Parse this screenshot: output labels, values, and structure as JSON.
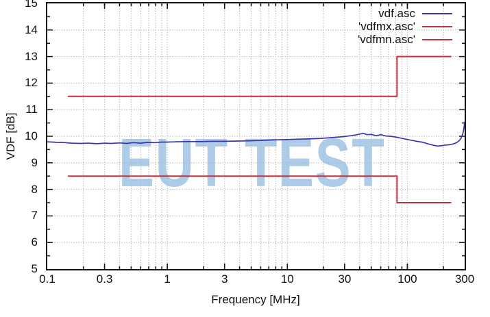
{
  "watermark": {
    "text": "EUT TEST",
    "color": "rgba(150,190,226,0.78)"
  },
  "colors": {
    "blue_series": "#3a35a8",
    "red_series": "#c4303c",
    "grid": "#c5c5c5",
    "axis": "#141414",
    "text": "#111111"
  },
  "chart_data": {
    "type": "line",
    "title": "",
    "xlabel": "Frequency [MHz]",
    "ylabel": "VDF [dB]",
    "x_scale": "log",
    "xlim": [
      0.1,
      300
    ],
    "ylim": [
      5,
      15
    ],
    "x_ticks": [
      0.1,
      0.3,
      1,
      3,
      10,
      30,
      100,
      300
    ],
    "x_tick_labels": [
      "0.1",
      "0.3",
      "1",
      "3",
      "10",
      "30",
      "100",
      "300"
    ],
    "y_ticks": [
      5,
      6,
      7,
      8,
      9,
      10,
      11,
      12,
      13,
      14,
      15
    ],
    "y_minor_step": 0.5,
    "grid": true,
    "legend_position": "top-right-inside",
    "series": [
      {
        "name": "vdf.asc",
        "color": "#3a35a8",
        "width": 1.7,
        "points": [
          [
            0.1,
            9.79
          ],
          [
            0.12,
            9.77
          ],
          [
            0.14,
            9.76
          ],
          [
            0.16,
            9.74
          ],
          [
            0.19,
            9.73
          ],
          [
            0.22,
            9.74
          ],
          [
            0.26,
            9.72
          ],
          [
            0.3,
            9.74
          ],
          [
            0.34,
            9.73
          ],
          [
            0.4,
            9.75
          ],
          [
            0.46,
            9.73
          ],
          [
            0.52,
            9.76
          ],
          [
            0.6,
            9.74
          ],
          [
            0.68,
            9.77
          ],
          [
            0.78,
            9.76
          ],
          [
            0.9,
            9.78
          ],
          [
            1.0,
            9.78
          ],
          [
            1.2,
            9.79
          ],
          [
            1.5,
            9.8
          ],
          [
            1.9,
            9.8
          ],
          [
            2.4,
            9.81
          ],
          [
            3.0,
            9.81
          ],
          [
            3.8,
            9.82
          ],
          [
            4.8,
            9.83
          ],
          [
            6.0,
            9.84
          ],
          [
            7.5,
            9.86
          ],
          [
            9.5,
            9.87
          ],
          [
            12,
            9.89
          ],
          [
            15,
            9.9
          ],
          [
            19,
            9.92
          ],
          [
            24,
            9.95
          ],
          [
            30,
            9.99
          ],
          [
            35,
            10.03
          ],
          [
            40,
            10.08
          ],
          [
            43,
            10.11
          ],
          [
            46,
            10.06
          ],
          [
            50,
            10.07
          ],
          [
            55,
            10.02
          ],
          [
            60,
            10.06
          ],
          [
            66,
            10.01
          ],
          [
            72,
            10.0
          ],
          [
            80,
            9.97
          ],
          [
            90,
            9.92
          ],
          [
            100,
            9.88
          ],
          [
            110,
            9.84
          ],
          [
            120,
            9.81
          ],
          [
            135,
            9.77
          ],
          [
            150,
            9.71
          ],
          [
            165,
            9.66
          ],
          [
            180,
            9.63
          ],
          [
            195,
            9.65
          ],
          [
            210,
            9.67
          ],
          [
            225,
            9.68
          ],
          [
            240,
            9.71
          ],
          [
            255,
            9.75
          ],
          [
            270,
            9.83
          ],
          [
            280,
            9.93
          ],
          [
            290,
            10.1
          ],
          [
            295,
            10.25
          ],
          [
            300,
            10.52
          ]
        ]
      },
      {
        "name": "'vdfmx.asc'",
        "color": "#c4303c",
        "width": 2,
        "points": [
          [
            0.15,
            11.5
          ],
          [
            82,
            11.5
          ],
          [
            82,
            13.0
          ],
          [
            230,
            13.0
          ]
        ]
      },
      {
        "name": "'vdfmn.asc'",
        "color": "#c4303c",
        "width": 2,
        "points": [
          [
            0.15,
            8.5
          ],
          [
            82,
            8.5
          ],
          [
            82,
            7.5
          ],
          [
            230,
            7.5
          ]
        ]
      }
    ]
  }
}
